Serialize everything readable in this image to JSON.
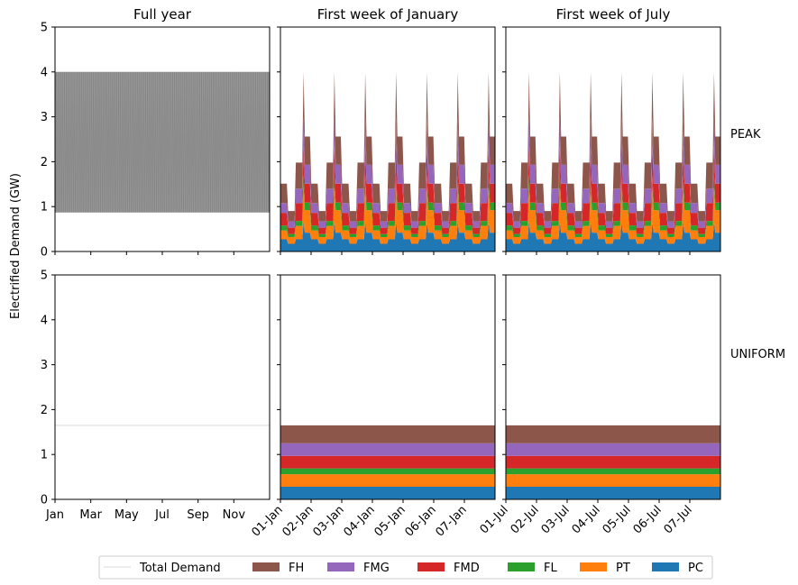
{
  "chart_data": {
    "type": "area",
    "ylabel": "Electrified Demand (GW)",
    "ylim": [
      0,
      5
    ],
    "yticks": [
      "0",
      "1",
      "2",
      "3",
      "4",
      "5"
    ],
    "columns": [
      {
        "title": "Full year",
        "xticks": [
          "Jan",
          "Mar",
          "May",
          "Jul",
          "Sep",
          "Nov"
        ]
      },
      {
        "title": "First week of January",
        "xticks": [
          "01-Jan",
          "02-Jan",
          "03-Jan",
          "04-Jan",
          "05-Jan",
          "06-Jan",
          "07-Jan"
        ]
      },
      {
        "title": "First week of July",
        "xticks": [
          "01-Jul",
          "02-Jul",
          "03-Jul",
          "04-Jul",
          "05-Jul",
          "06-Jul",
          "07-Jul"
        ]
      }
    ],
    "rows": [
      "PEAK",
      "UNIFORM"
    ],
    "series": [
      {
        "name": "PC",
        "color": "#1f77b4",
        "uniform": 0.28,
        "peak_daily": [
          0.27,
          0.27,
          0.27,
          0.27,
          0.27,
          0.27,
          0.17,
          0.17,
          0.17,
          0.17,
          0.17,
          0.17,
          0.27,
          0.27,
          0.27,
          0.27,
          0.27,
          0.27,
          0.42,
          0.42,
          0.42,
          0.42,
          0.42,
          0.42
        ]
      },
      {
        "name": "PT",
        "color": "#ff7f0e",
        "uniform": 0.28,
        "peak_daily": [
          0.2,
          0.2,
          0.2,
          0.2,
          0.2,
          0.2,
          0.15,
          0.15,
          0.15,
          0.15,
          0.15,
          0.15,
          0.3,
          0.3,
          0.3,
          0.3,
          0.3,
          0.3,
          0.5,
          0.5,
          0.5,
          0.5,
          0.5,
          0.5
        ]
      },
      {
        "name": "FL",
        "color": "#2ca02c",
        "uniform": 0.13,
        "peak_daily": [
          0.11,
          0.11,
          0.11,
          0.11,
          0.11,
          0.11,
          0.07,
          0.07,
          0.07,
          0.07,
          0.07,
          0.07,
          0.11,
          0.11,
          0.11,
          0.11,
          0.11,
          0.11,
          0.17,
          0.17,
          0.17,
          0.17,
          0.17,
          0.17
        ]
      },
      {
        "name": "FMD",
        "color": "#d62728",
        "uniform": 0.28,
        "peak_daily": [
          0.28,
          0.28,
          0.28,
          0.28,
          0.28,
          0.28,
          0.14,
          0.14,
          0.14,
          0.14,
          0.14,
          0.14,
          0.4,
          0.4,
          0.4,
          0.4,
          0.4,
          0.4,
          0.42,
          0.42,
          0.42,
          0.42,
          0.42,
          0.42
        ]
      },
      {
        "name": "FMG",
        "color": "#9467bd",
        "uniform": 0.28,
        "peak_daily": [
          0.22,
          0.22,
          0.22,
          0.22,
          0.22,
          0.22,
          0.14,
          0.14,
          0.14,
          0.14,
          0.14,
          0.14,
          0.32,
          0.32,
          0.32,
          0.32,
          0.32,
          0.32,
          0.42,
          0.42,
          0.42,
          0.42,
          0.42,
          0.42
        ]
      },
      {
        "name": "FH",
        "color": "#8c564b",
        "uniform": 0.4,
        "peak_daily": [
          0.43,
          0.43,
          0.43,
          0.43,
          0.43,
          0.43,
          0.23,
          0.23,
          0.23,
          0.23,
          0.23,
          0.23,
          0.58,
          0.58,
          0.58,
          0.58,
          0.58,
          0.58,
          0.63,
          0.63,
          0.63,
          0.63,
          0.63,
          0.63
        ]
      }
    ],
    "peak_daily_spike": {
      "hour": 18,
      "total": 4.0
    },
    "total_demand": {
      "name": "Total Demand",
      "color": "#d9d9d9",
      "peak_min": 0.87,
      "peak_max": 4.0,
      "uniform": 1.65
    },
    "legend": {
      "position": "bottom",
      "items": [
        "Total Demand",
        "FH",
        "FMG",
        "FMD",
        "FL",
        "PT",
        "PC"
      ]
    },
    "grid": false
  }
}
